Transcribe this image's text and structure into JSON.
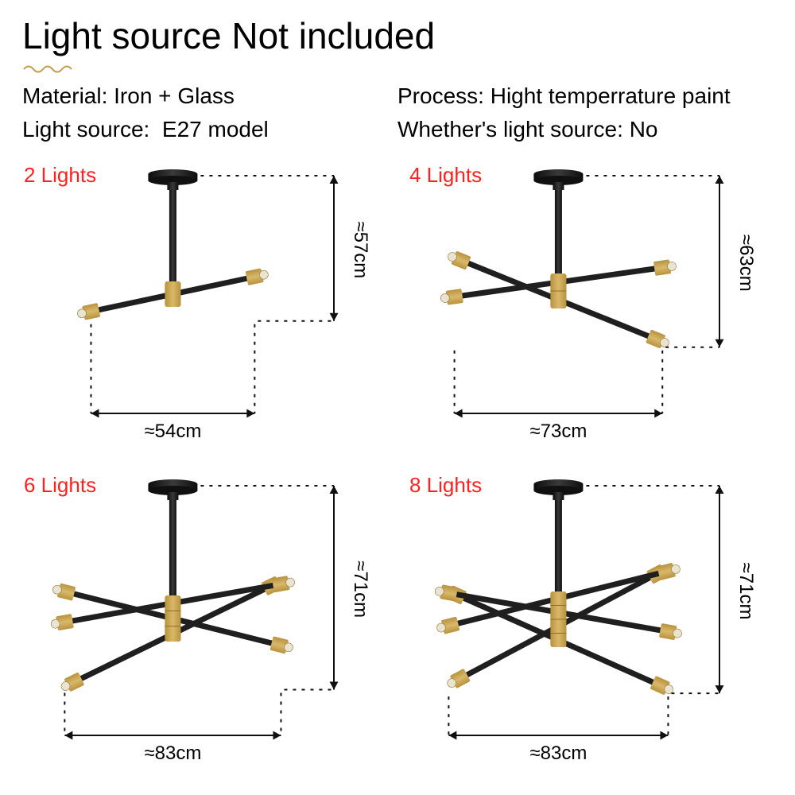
{
  "title": "Light source Not included",
  "specs": {
    "left": [
      {
        "label": "Material:",
        "value": "Iron + Glass"
      },
      {
        "label": "Light source:",
        "value": "E27 model"
      }
    ],
    "right": [
      {
        "label": "Process:",
        "value": "Hight temperrature paint"
      },
      {
        "label": "Whether's light source:",
        "value": "No"
      }
    ]
  },
  "squiggle_color": "#c49a4a",
  "colors": {
    "label_red": "#ff2020",
    "text": "#000000",
    "arm_black": "#1f1f1f",
    "gold": "#b8933e",
    "gold_light": "#d9b86a",
    "bg": "#ffffff"
  },
  "panels": [
    {
      "id": "p2",
      "label": "2 Lights",
      "width_label": "≈54cm",
      "height_label": "≈57cm",
      "arms": 2,
      "stem_h": 115,
      "arm_len": 95,
      "hub_h": 32,
      "angles": [
        12
      ]
    },
    {
      "id": "p4",
      "label": "4 Lights",
      "width_label": "≈73cm",
      "height_label": "≈63cm",
      "arms": 4,
      "stem_h": 105,
      "arm_len": 122,
      "hub_h": 44,
      "angles": [
        8,
        -22
      ]
    },
    {
      "id": "p6",
      "label": "6 Lights",
      "width_label": "≈83cm",
      "height_label": "≈71cm",
      "arms": 6,
      "stem_h": 120,
      "arm_len": 128,
      "hub_h": 58,
      "angles": [
        10,
        -14,
        26
      ]
    },
    {
      "id": "p8",
      "label": "8 Lights",
      "width_label": "≈83cm",
      "height_label": "≈71cm",
      "arms": 8,
      "stem_h": 115,
      "arm_len": 130,
      "hub_h": 70,
      "angles": [
        14,
        -10,
        28,
        -24
      ]
    }
  ],
  "dim_style": {
    "axis_stroke": "#101010",
    "axis_width": 2,
    "dash_pattern": "4 7",
    "arrow_size": 10
  },
  "typography": {
    "title_size": 46,
    "spec_size": 28,
    "label_size": 26,
    "dim_size": 24,
    "font_family": "Segoe UI, Arial, sans-serif"
  }
}
